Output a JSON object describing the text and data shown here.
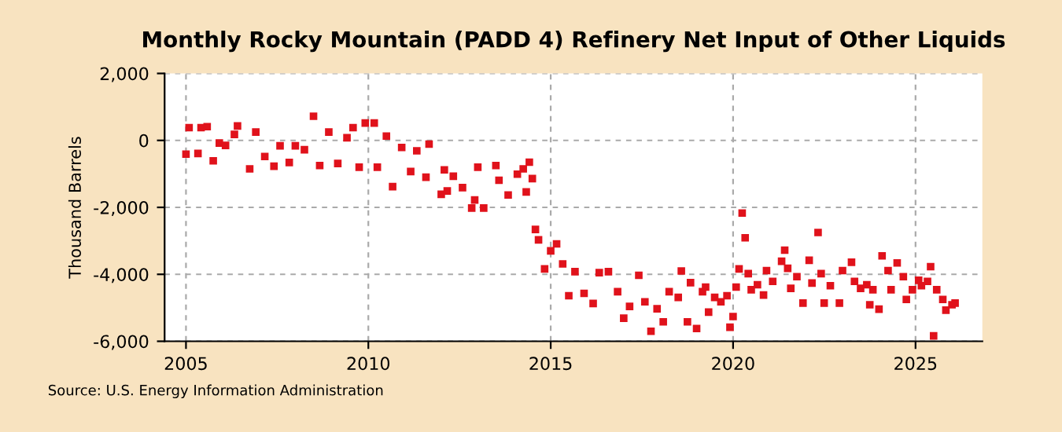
{
  "chart_data": {
    "type": "scatter",
    "title": "Monthly Rocky Mountain (PADD 4) Refinery Net Input of Other Liquids",
    "ylabel": "Thousand Barrels",
    "annotations": [
      "Source: U.S. Energy Information Administration"
    ],
    "x": [
      "2005-01",
      "2005-02",
      "2005-05",
      "2005-06",
      "2005-08",
      "2005-10",
      "2005-12",
      "2006-02",
      "2006-05",
      "2006-06",
      "2006-10",
      "2006-12",
      "2007-03",
      "2007-06",
      "2007-08",
      "2007-11",
      "2008-01",
      "2008-04",
      "2008-07",
      "2008-09",
      "2008-12",
      "2009-03",
      "2009-06",
      "2009-08",
      "2009-10",
      "2009-12",
      "2010-03",
      "2010-04",
      "2010-07",
      "2010-09",
      "2010-12",
      "2011-03",
      "2011-05",
      "2011-08",
      "2011-09",
      "2012-01",
      "2012-02",
      "2012-03",
      "2012-05",
      "2012-08",
      "2012-11",
      "2012-12",
      "2013-01",
      "2013-03",
      "2013-07",
      "2013-08",
      "2013-11",
      "2014-02",
      "2014-04",
      "2014-05",
      "2014-06",
      "2014-07",
      "2014-08",
      "2014-09",
      "2014-11",
      "2015-01",
      "2015-03",
      "2015-05",
      "2015-07",
      "2015-09",
      "2015-12",
      "2016-03",
      "2016-05",
      "2016-08",
      "2016-11",
      "2017-01",
      "2017-03",
      "2017-06",
      "2017-08",
      "2017-10",
      "2017-12",
      "2018-02",
      "2018-04",
      "2018-07",
      "2018-08",
      "2018-10",
      "2018-11",
      "2019-01",
      "2019-03",
      "2019-04",
      "2019-05",
      "2019-07",
      "2019-09",
      "2019-11",
      "2019-12",
      "2020-01",
      "2020-02",
      "2020-03",
      "2020-04",
      "2020-05",
      "2020-06",
      "2020-07",
      "2020-09",
      "2020-11",
      "2020-12",
      "2021-02",
      "2021-05",
      "2021-06",
      "2021-07",
      "2021-08",
      "2021-10",
      "2021-12",
      "2022-02",
      "2022-03",
      "2022-05",
      "2022-06",
      "2022-07",
      "2022-09",
      "2022-12",
      "2023-01",
      "2023-04",
      "2023-05",
      "2023-07",
      "2023-09",
      "2023-10",
      "2023-11",
      "2024-01",
      "2024-02",
      "2024-04",
      "2024-05",
      "2024-07",
      "2024-09",
      "2024-10",
      "2024-12",
      "2025-02",
      "2025-03",
      "2025-05",
      "2025-06",
      "2025-07",
      "2025-08",
      "2025-10",
      "2025-11",
      "2026-01",
      "2026-02"
    ],
    "series": [
      {
        "color": "#e0121b",
        "values": [
          -410,
          380,
          -390,
          380,
          410,
          -610,
          -80,
          -150,
          180,
          430,
          -850,
          250,
          -480,
          -770,
          -160,
          -660,
          -160,
          -280,
          720,
          -750,
          250,
          -690,
          80,
          380,
          -800,
          520,
          520,
          -800,
          130,
          -1380,
          -210,
          -930,
          -310,
          -1100,
          -110,
          -1610,
          -880,
          -1510,
          -1070,
          -1410,
          -2020,
          -1780,
          -800,
          -2020,
          -750,
          -1190,
          -1630,
          -1010,
          -850,
          -1540,
          -650,
          -1140,
          -2660,
          -2970,
          -3840,
          -3300,
          -3090,
          -3690,
          -4640,
          -3920,
          -4570,
          -4870,
          -3950,
          -3920,
          -4520,
          -5310,
          -4960,
          -4030,
          -4820,
          -5700,
          -5030,
          -5420,
          -4520,
          -4690,
          -3900,
          -5420,
          -4250,
          -5620,
          -4520,
          -4380,
          -5130,
          -4690,
          -4820,
          -4640,
          -5580,
          -5260,
          -4380,
          -3840,
          -2170,
          -2910,
          -3980,
          -4460,
          -4310,
          -4620,
          -3890,
          -4210,
          -3610,
          -3280,
          -3820,
          -4420,
          -4070,
          -4860,
          -3580,
          -4260,
          -2750,
          -3980,
          -4860,
          -4340,
          -4860,
          -3890,
          -3640,
          -4210,
          -4420,
          -4310,
          -4910,
          -4460,
          -5040,
          -3450,
          -3890,
          -4460,
          -3660,
          -4070,
          -4750,
          -4460,
          -4180,
          -4340,
          -4210,
          -3770,
          -5840,
          -4460,
          -4750,
          -5070,
          -4910,
          -4860
        ]
      }
    ],
    "marker": "square",
    "grid": true,
    "xlim": [
      "2004-06",
      "2026-11"
    ],
    "xticks": [
      {
        "value": "2005",
        "label": "2005"
      },
      {
        "value": "2010",
        "label": "2010"
      },
      {
        "value": "2015",
        "label": "2015"
      },
      {
        "value": "2020",
        "label": "2020"
      },
      {
        "value": "2025",
        "label": "2025"
      }
    ],
    "ylim": [
      -6000,
      2000
    ],
    "yticks": [
      {
        "value": -6000,
        "label": "-6,000"
      },
      {
        "value": -4000,
        "label": "-4,000"
      },
      {
        "value": -2000,
        "label": "-2,000"
      },
      {
        "value": 0,
        "label": "0"
      },
      {
        "value": 2000,
        "label": "2,000"
      }
    ]
  }
}
